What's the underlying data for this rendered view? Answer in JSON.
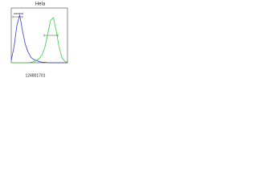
{
  "chart_data": {
    "type": "line",
    "title": "Hela",
    "label": "control",
    "footnote": "124801701",
    "x": [
      0,
      5,
      10,
      15,
      20,
      25,
      30,
      35,
      40,
      45,
      50,
      55,
      60,
      65,
      70,
      75,
      80,
      85,
      90,
      95,
      100
    ],
    "series": [
      {
        "name": "control",
        "color": "#3a3ad0",
        "values": [
          5,
          30,
          70,
          90,
          60,
          35,
          20,
          10,
          6,
          4,
          2,
          1,
          1,
          0,
          0,
          0,
          0,
          0,
          0,
          0,
          0
        ]
      },
      {
        "color": "#3ccc3c",
        "values": [
          0,
          0,
          0,
          0,
          0,
          0,
          0,
          1,
          2,
          4,
          8,
          15,
          30,
          55,
          80,
          85,
          60,
          30,
          10,
          3,
          1
        ]
      }
    ],
    "xlim": [
      0,
      100
    ],
    "ylim": [
      0,
      100
    ]
  }
}
